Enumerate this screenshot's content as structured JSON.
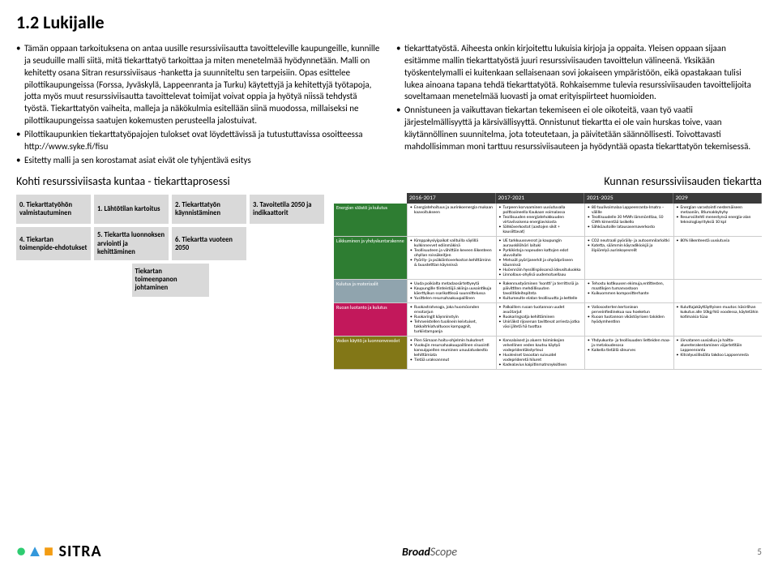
{
  "heading": "1.2 Lukijalle",
  "left_paragraphs": [
    "Tämän oppaan tarkoituksena on antaa uusille resurssiviisautta tavoitteleville kaupungeille, kunnille ja seuduille malli siitä, mitä tiekarttatyö tarkoittaa ja miten menetelmää hyödynnetään. Malli on kehitetty osana Sitran resurssiviisaus -hanketta ja suunniteltu sen tarpeisiin. Opas esittelee pilottikaupungeissa (Forssa, Jyväskylä, Lappeenranta ja Turku) käytettyjä ja kehitettyjä työtapoja, jotta myös muut resurssiviisautta tavoittelevat toimijat voivat oppia ja hyötyä niissä tehdystä työstä. Tiekarttatyön vaiheita, malleja ja näkökulmia esitellään siinä muodossa, millaiseksi ne pilottikaupungeissa saatujen kokemusten perusteella jalostuivat.",
    "Pilottikaupunkien tiekarttatyöpajojen tulokset  ovat löydettävissä ja tutustuttavissa osoitteessa http://www.syke.fi/fisu",
    "Esitetty malli ja sen korostamat asiat eivät ole tyhjentävä esitys"
  ],
  "right_paragraphs": [
    "tiekarttatyöstä. Aiheesta onkin kirjoitettu lukuisia kirjoja ja oppaita. Yleisen oppaan sijaan esitämme mallin tiekarttatyöstä juuri resurssiviisauden tavoittelun välineenä. Yksikään työskentelymalli ei kuitenkaan sellaisenaan sovi jokaiseen ympäristöön, eikä opastakaan tulisi lukea ainoana tapana tehdä tiekarttatyötä. Rohkaisemme tulevia resurssiviisauden tavoittelijoita soveltamaan menetelmää luovasti ja omat erityispiirteet huomioiden.",
    "Onnistuneen ja vaikuttavan tiekartan tekemiseen ei ole oikoteitä, vaan työ vaatii järjestelmällisyyttä ja kärsivällisyyttä. Onnistunut tiekartta ei ole vain hurskas toive, vaan käytännöllinen suunnitelma, jota toteutetaan, ja päivitetään säännöllisesti. Toivottavasti mahdollisimman moni tarttuu resurssiviisauteen ja hyödyntää opasta tiekarttatyön tekemisessä."
  ],
  "process_title": "Kohti resurssiviisasta kuntaa - tiekarttaprosessi",
  "process_boxes": [
    [
      "0. Tiekarttatyöhön valmistautuminen",
      "1. Lähtötilan kartoitus",
      "2. Tiekarttatyön käynnistäminen",
      "3. Tavoitetila 2050 ja indikaattorit"
    ],
    [
      "4. Tiekartan toimenpide-ehdotukset",
      "5. Tiekartta luonnoksen arviointi ja kehittäminen",
      "6. Tiekartta vuoteen 2050",
      ""
    ],
    [
      "Tiekartan toimeenpanon johtaminen"
    ]
  ],
  "timeline_title": "Kunnan resurssiviisauden tiekartta",
  "timeline_headers": [
    "2016-2017",
    "2017-2021",
    "2021-2025",
    "2029"
  ],
  "timeline_rows": [
    {
      "label": "Energian säästö ja kulutus",
      "color": "#2e7d32",
      "cells": [
        [
          "Energiatehoituus ja aurinkoenergia mukaan kaavoitukseen"
        ],
        [
          "Turpeen korvaaminen uusiutuvalla polttoaineella Kaukaan voimalassa",
          "Teollisuuden energiatehokkuuden virtaviivaisena energiavisiosta",
          "Sähköverkostot (aastojen sikit + kausiittavat)"
        ],
        [
          "80 tuulivoimalaa Lappeenranta-Imatra – välille",
          "Teollisuudelle 30 MWh lämmöntilaa, 50 GWh kimentää lasikello",
          "Sähköautoille latausasemaverkosto"
        ],
        [
          "Energian varastointi nestemäiseen metaaniin, litiumakkyhyhy",
          "Resurssiitehti menestynsä energia-alan teknologiayrityksiä 10 kpl"
        ]
      ]
    },
    {
      "label": "Liikkuminen ja yhdyskuntarakenne",
      "color": "#2e7d32",
      "cells": [
        [
          "Kimppakysiyipaikat valituilla väylillä kulkinnevvet ediinmäkinä",
          "Teollisuuteen ja vähittäin keveen liikenteen ohyllan roissäkeitjen",
          "Pyörily- ja psäköintoverkoston kehittäminn & buustetttan käynnissä"
        ],
        [
          "UE tarkkuussvesrot ja kaupungin aurauskilöhöri laituki",
          "Pyrkikistoja nopeuden kattojen edot aluvoitalle",
          "Metsaät pyörijanerkit ja ohyödpriiseen käunnissä",
          "Huövnnäin hyssillispiissansä ideusituluokka",
          "Linnollaus-ohylisä uudemotuellaau"
        ],
        [
          "CO2 neutraali pyöräily- ja autoomnilarloitki",
          "Katetta, säämmin käyradikioisjä ja ilipiörelyä aurinkoyesrelit"
        ],
        [
          "80% liikenteestä uusiutuvia"
        ]
      ]
    },
    {
      "label": "Kulutus ja materiaalit",
      "color": "#90a4ae",
      "cells": [
        [
          "Uuda poikialta metadaosärtettyeytä",
          "Kaupungille tiinteistöjä akiinja uusointikuja käerttyikun ssarikattleaä suunnittelussa",
          "Yusittelen resursahaakuupaillinen"
        ],
        [
          "Rakennustyöminen 'Isontti' ja territtsriä ja päivittiten mehdillisuuten tavolitlideitepitnta",
          "Kuitumeulte elatan teollisuutta ja kettelle"
        ],
        [
          "Tehostu kotikuusen ekimuja,entittesten, maatilojen tumanvastoon",
          "Kuikuommen kompositterhante"
        ],
        [
          ""
        ]
      ]
    },
    {
      "label": "Ruoan luotanto ja kulutus",
      "color": "#c2185b",
      "cells": [
        [
          "Ruokastratveaga, joka huomöonden ervotarjun",
          "Ruokaringit käynninstyin",
          "Tehnveistellen tuolinein keivtuiset, takkaitrkiatvaltuoos kampagnit, turkiistampanja"
        ],
        [
          "Palkaillers ruoan tuotannon uudet avuötarjut",
          "Ruokaringsatja kehittäminen",
          "Uniriäkst rijosenan tavittevat arriesta jotka väoi jätetä hä tuottaa"
        ],
        [
          "Valiososterten kertoniean perveinfiedinekua suu hoeketun",
          "Ruoan tuotannon vikästöyrioen talolden hyödymhentinn"
        ],
        [
          "Kuluttajakäyttäyttyisen muutos: käsirlihan kukutus alle 10kg/hlö voodessa, käytetähin kotimaisia tüaa"
        ]
      ]
    },
    {
      "label": "Veden käyttö ja luonnonvevedet",
      "color": "#827717",
      "cells": [
        [
          "Pien Sämaan hoitu-ohjelmin hukutesrt",
          "Vuokujin resursahaakuupaillinen visuointi kansuippeiten reuminen unuulatuskestio kehittämiata",
          "Tietää urakvannnut"
        ],
        [
          "Kansalaisest ja aluern toiminkojen velvellinen veden kautsu käytyö vodepridentäkstyrteui",
          "Huoleviset tasootan suivuatel vodeprideretä hiluret",
          "Kadealavius kaipitinmatrsnyksitisen"
        ],
        [
          "Yhdyukunta- ja teollisuuden lietteiden maa- ja metaloudesosa",
          "Kaikella tietällä sileurves"
        ],
        [
          "Järvatanen uusialiua ja haitta-alueeterakentaminen väjartetitäin Lappeenranta",
          "Kitratyusiilisdäta takdoo Lappsenresta"
        ]
      ]
    }
  ],
  "footer": {
    "sitra": "SITRA",
    "broadscope": "BroadScope",
    "page": "5"
  }
}
